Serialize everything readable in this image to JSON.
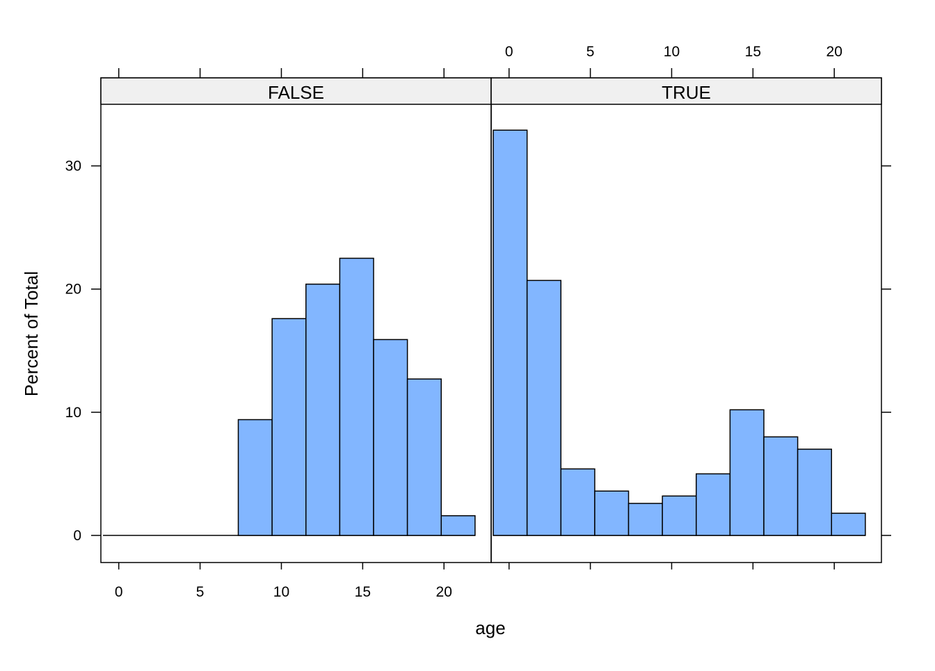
{
  "chart_data": {
    "type": "bar",
    "subtype": "histogram",
    "xlabel": "age",
    "ylabel": "Percent of Total",
    "xlim": [
      -1.1,
      22.9
    ],
    "ylim": [
      -2.2,
      35
    ],
    "x_ticks": [
      0,
      5,
      10,
      15,
      20
    ],
    "y_ticks": [
      0,
      10,
      20,
      30
    ],
    "bin_width": 2.08,
    "bin_start": -0.97,
    "colors": {
      "bar_fill": "#82b6ff",
      "bar_stroke": "#000000",
      "strip_bg": "#f0f0f0"
    },
    "panels": [
      {
        "strip": "FALSE",
        "values": [
          0,
          0,
          0,
          0,
          9.4,
          17.6,
          20.4,
          22.5,
          15.9,
          12.7,
          1.6
        ]
      },
      {
        "strip": "TRUE",
        "values": [
          32.9,
          20.7,
          5.4,
          3.6,
          2.6,
          3.2,
          5.0,
          10.2,
          8.0,
          7.0,
          1.8
        ]
      }
    ]
  }
}
